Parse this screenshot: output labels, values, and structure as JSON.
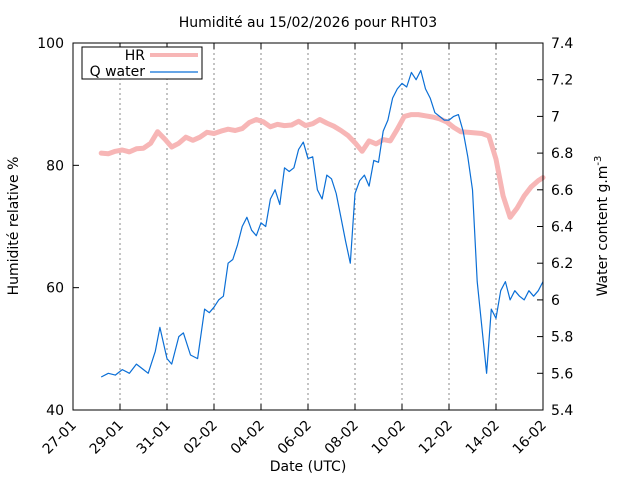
{
  "chart_data": {
    "type": "line",
    "title": "Humidité au 15/02/2026 pour RHT03",
    "xlabel": "Date (UTC)",
    "ylabel_left": "Humidité relative %",
    "ylabel_right_base": "Water content g.m",
    "ylabel_right_sup": "-3",
    "x_ticks": [
      "27-01",
      "29-01",
      "31-01",
      "02-02",
      "04-02",
      "06-02",
      "08-02",
      "10-02",
      "12-02",
      "14-02",
      "16-02"
    ],
    "xlim_days": [
      0,
      20
    ],
    "ylim_left": [
      40,
      100
    ],
    "y_ticks_left": [
      "40",
      "60",
      "80",
      "100"
    ],
    "ylim_right": [
      5.4,
      7.4
    ],
    "y_ticks_right": [
      "5.4",
      "5.6",
      "5.8",
      "6",
      "6.2",
      "6.4",
      "6.6",
      "6.8",
      "7",
      "7.2",
      "7.4"
    ],
    "grid": "vertical-dashed",
    "legend_position": "top-left",
    "colors": {
      "hr": "#f7b6b6",
      "q": "#0b6fd6"
    },
    "series": [
      {
        "name": "HR",
        "axis": "left",
        "x": [
          1.2,
          1.5,
          1.8,
          2.1,
          2.4,
          2.7,
          3.0,
          3.3,
          3.6,
          3.9,
          4.2,
          4.5,
          4.8,
          5.1,
          5.4,
          5.7,
          6.0,
          6.3,
          6.6,
          6.9,
          7.2,
          7.5,
          7.8,
          8.1,
          8.4,
          8.7,
          9.0,
          9.3,
          9.6,
          9.9,
          10.2,
          10.5,
          10.8,
          11.1,
          11.4,
          11.7,
          12.0,
          12.3,
          12.6,
          12.9,
          13.2,
          13.5,
          13.8,
          14.1,
          14.4,
          14.7,
          15.0,
          15.3,
          15.6,
          15.9,
          16.2,
          16.5,
          16.8,
          17.1,
          17.4,
          17.7,
          18.0,
          18.3,
          18.6,
          18.9,
          19.2,
          19.5,
          19.8,
          20.0
        ],
        "values": [
          82.0,
          81.9,
          82.3,
          82.5,
          82.2,
          82.7,
          82.8,
          83.6,
          85.5,
          84.3,
          83.0,
          83.6,
          84.6,
          84.1,
          84.6,
          85.4,
          85.2,
          85.6,
          85.9,
          85.7,
          86.0,
          87.0,
          87.5,
          87.1,
          86.3,
          86.7,
          86.5,
          86.6,
          87.2,
          86.5,
          86.8,
          87.5,
          86.9,
          86.4,
          85.7,
          84.9,
          83.7,
          82.3,
          84.0,
          83.5,
          84.2,
          84.0,
          85.9,
          88.0,
          88.3,
          88.3,
          88.1,
          87.9,
          87.6,
          87.1,
          86.2,
          85.5,
          85.4,
          85.3,
          85.2,
          84.8,
          81.0,
          75.0,
          71.5,
          73.0,
          75.0,
          76.5,
          77.5,
          78.0
        ]
      },
      {
        "name": "Q water",
        "axis": "right",
        "x": [
          1.2,
          1.5,
          1.8,
          2.1,
          2.4,
          2.7,
          3.0,
          3.2,
          3.5,
          3.7,
          4.0,
          4.2,
          4.5,
          4.7,
          5.0,
          5.3,
          5.6,
          5.8,
          6.0,
          6.2,
          6.4,
          6.6,
          6.8,
          7.0,
          7.2,
          7.4,
          7.6,
          7.8,
          8.0,
          8.2,
          8.4,
          8.6,
          8.8,
          9.0,
          9.2,
          9.4,
          9.6,
          9.8,
          10.0,
          10.2,
          10.4,
          10.6,
          10.8,
          11.0,
          11.2,
          11.4,
          11.6,
          11.8,
          12.0,
          12.2,
          12.4,
          12.6,
          12.8,
          13.0,
          13.2,
          13.4,
          13.6,
          13.8,
          14.0,
          14.2,
          14.4,
          14.6,
          14.8,
          15.0,
          15.2,
          15.4,
          15.6,
          15.8,
          16.0,
          16.2,
          16.4,
          16.6,
          16.8,
          17.0,
          17.2,
          17.4,
          17.6,
          17.8,
          18.0,
          18.2,
          18.4,
          18.6,
          18.8,
          19.0,
          19.2,
          19.4,
          19.6,
          19.8,
          20.0
        ],
        "values": [
          5.58,
          5.6,
          5.59,
          5.62,
          5.6,
          5.65,
          5.62,
          5.6,
          5.72,
          5.85,
          5.68,
          5.65,
          5.8,
          5.82,
          5.7,
          5.68,
          5.95,
          5.93,
          5.96,
          6.0,
          6.02,
          6.2,
          6.22,
          6.3,
          6.4,
          6.45,
          6.38,
          6.35,
          6.42,
          6.4,
          6.55,
          6.6,
          6.52,
          6.72,
          6.7,
          6.72,
          6.82,
          6.86,
          6.77,
          6.78,
          6.6,
          6.55,
          6.68,
          6.66,
          6.58,
          6.45,
          6.32,
          6.2,
          6.58,
          6.65,
          6.68,
          6.62,
          6.76,
          6.75,
          6.92,
          6.98,
          7.1,
          7.15,
          7.18,
          7.16,
          7.24,
          7.2,
          7.25,
          7.15,
          7.1,
          7.02,
          7.0,
          6.98,
          6.98,
          7.0,
          7.01,
          6.92,
          6.78,
          6.6,
          6.1,
          5.85,
          5.6,
          5.95,
          5.9,
          6.05,
          6.1,
          6.0,
          6.05,
          6.02,
          6.0,
          6.05,
          6.02,
          6.05,
          6.1
        ]
      }
    ]
  }
}
